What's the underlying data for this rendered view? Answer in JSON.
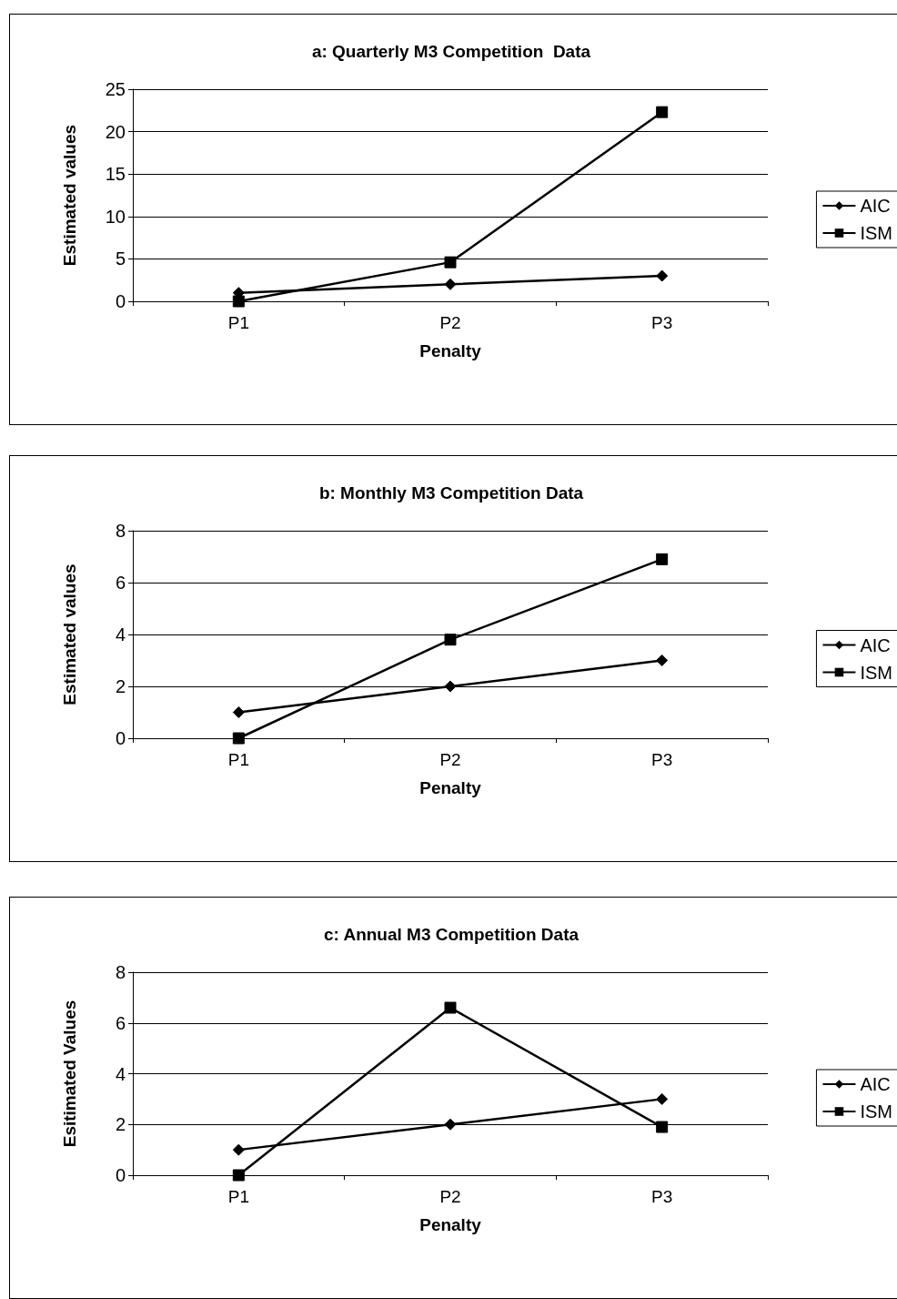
{
  "chart_data": [
    {
      "type": "line",
      "title": "a: Quarterly M3 Competition  Data",
      "xlabel": "Penalty",
      "ylabel": "Estimated values",
      "categories": [
        "P1",
        "P2",
        "P3"
      ],
      "ylim": [
        0,
        25
      ],
      "yticks": [
        0,
        5,
        10,
        15,
        20,
        25
      ],
      "grid": "y",
      "legend": "right",
      "series": [
        {
          "name": "AIC",
          "color": "#000000",
          "marker": "diamond",
          "values": [
            1,
            2,
            3
          ]
        },
        {
          "name": "ISM",
          "color": "#000000",
          "marker": "square",
          "values": [
            0,
            4.6,
            22.3
          ]
        }
      ]
    },
    {
      "type": "line",
      "title": "b: Monthly M3 Competition Data",
      "xlabel": "Penalty",
      "ylabel": "Estimated values",
      "categories": [
        "P1",
        "P2",
        "P3"
      ],
      "ylim": [
        0,
        8
      ],
      "yticks": [
        0,
        2,
        4,
        6,
        8
      ],
      "grid": "y",
      "legend": "right",
      "series": [
        {
          "name": "AIC",
          "color": "#000000",
          "marker": "diamond",
          "values": [
            1,
            2,
            3
          ]
        },
        {
          "name": "ISM",
          "color": "#000000",
          "marker": "square",
          "values": [
            0,
            3.8,
            6.9
          ]
        }
      ]
    },
    {
      "type": "line",
      "title": "c: Annual M3 Competition Data",
      "xlabel": "Penalty",
      "ylabel": "Esitimated Values",
      "categories": [
        "P1",
        "P2",
        "P3"
      ],
      "ylim": [
        0,
        8
      ],
      "yticks": [
        0,
        2,
        4,
        6,
        8
      ],
      "grid": "y",
      "legend": "right",
      "series": [
        {
          "name": "AIC",
          "color": "#000000",
          "marker": "diamond",
          "values": [
            1,
            2,
            3
          ]
        },
        {
          "name": "ISM",
          "color": "#000000",
          "marker": "square",
          "values": [
            0,
            6.6,
            1.9
          ]
        }
      ]
    }
  ]
}
